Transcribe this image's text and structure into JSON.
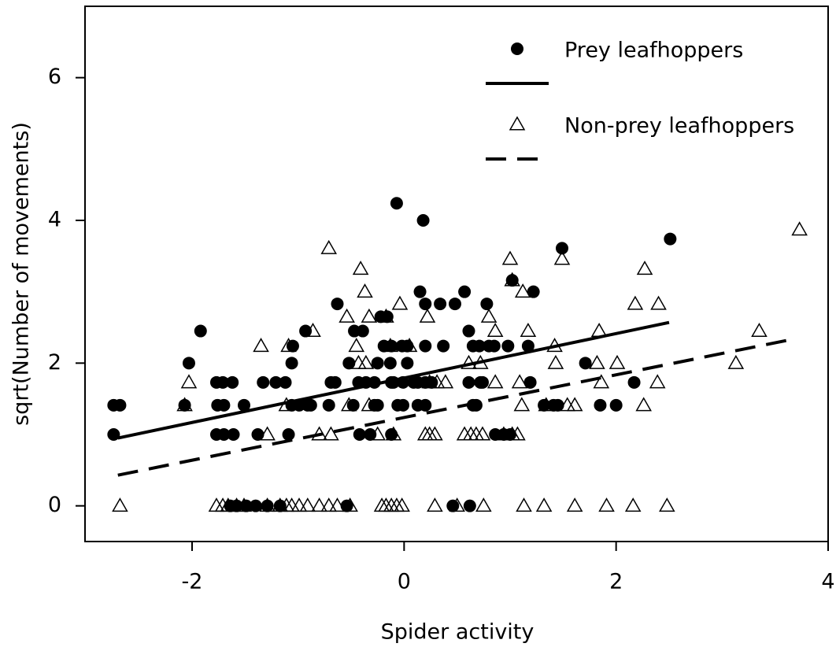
{
  "chart_data": {
    "type": "scatter",
    "x_label": "Spider activity",
    "y_label": "sqrt(Number of movements)",
    "xlim": [
      -3.01,
      4
    ],
    "ylim": [
      -0.5,
      7
    ],
    "xticks": [
      -2,
      0,
      2,
      4
    ],
    "yticks": [
      0,
      2,
      4,
      6
    ],
    "legend": "upper right",
    "series": [
      {
        "name": "Prey leafhoppers",
        "marker": "circle",
        "color": "#000000",
        "x": [
          -2.74,
          -2.68,
          -2.74,
          -2.07,
          -2.03,
          -1.92,
          -1.77,
          -1.71,
          -1.76,
          -1.7,
          -1.77,
          -1.7,
          -1.61,
          -1.64,
          -1.58,
          -1.49,
          -1.62,
          -1.51,
          -1.4,
          -1.29,
          -1.17,
          -1.38,
          -1.33,
          -1.21,
          -1.12,
          -1.09,
          -1.06,
          -1.05,
          -1.06,
          -0.99,
          -0.91,
          -0.88,
          -0.93,
          -0.71,
          -0.69,
          -0.65,
          -0.63,
          -0.54,
          -0.52,
          -0.48,
          -0.42,
          -0.47,
          -0.39,
          -0.43,
          -0.36,
          -0.28,
          -0.32,
          -0.28,
          -0.25,
          -0.25,
          -0.22,
          -0.16,
          -0.19,
          -0.12,
          -0.13,
          -0.12,
          -0.1,
          -0.12,
          -0.06,
          -0.01,
          -0.07,
          -0.02,
          0.03,
          -0.01,
          0.03,
          0.09,
          0.13,
          0.13,
          0.2,
          0.15,
          0.18,
          0.2,
          0.26,
          0.2,
          0.2,
          0.34,
          0.37,
          0.46,
          0.48,
          0.57,
          0.61,
          0.61,
          0.65,
          0.62,
          0.65,
          0.68,
          0.71,
          0.72,
          0.74,
          0.78,
          0.8,
          0.85,
          0.86,
          0.94,
          1.0,
          0.98,
          1.02,
          1.17,
          1.19,
          1.22,
          1.32,
          1.41,
          1.45,
          1.49,
          1.71,
          1.85,
          2.0,
          2.17,
          2.51
        ],
        "values": [
          1.41,
          1.41,
          1,
          1.41,
          2,
          2.45,
          1.73,
          1.73,
          1.41,
          1.41,
          1,
          1,
          1,
          0,
          0,
          0,
          1.73,
          1.41,
          0,
          0,
          0,
          1,
          1.73,
          1.73,
          1.73,
          1,
          2,
          2.24,
          1.41,
          1.41,
          1.41,
          1.41,
          2.45,
          1.41,
          1.73,
          1.73,
          2.83,
          0,
          2,
          1.41,
          1,
          2.45,
          2.45,
          1.73,
          1.73,
          1.73,
          1,
          1.41,
          1.41,
          2,
          2.65,
          2.65,
          2.24,
          2.24,
          2,
          1.73,
          1.73,
          1,
          1.41,
          1.41,
          4.24,
          2.24,
          2.24,
          1.73,
          2,
          1.73,
          1.73,
          1.41,
          1.41,
          3,
          4,
          1.73,
          1.73,
          2.24,
          2.83,
          2.83,
          2.24,
          0,
          2.83,
          3,
          2.45,
          1.73,
          2.24,
          0,
          1.41,
          1.41,
          2.24,
          1.73,
          1.73,
          2.83,
          2.24,
          2.24,
          1,
          1,
          1,
          2.24,
          3.16,
          2.24,
          1.73,
          3,
          1.41,
          1.41,
          1.41,
          3.61,
          2,
          1.41,
          1.41,
          1.73,
          3.74
        ],
        "fit": {
          "x": [
            -2.7,
            2.5
          ],
          "values": [
            0.95,
            2.57
          ],
          "style": "solid"
        }
      },
      {
        "name": "Non-prey leafhoppers",
        "marker": "triangle",
        "color": "#000000",
        "x": [
          -2.68,
          -1.77,
          -1.71,
          -1.66,
          -1.58,
          -1.51,
          -1.29,
          -1.17,
          -1.11,
          -1.06,
          -0.99,
          -0.91,
          -0.8,
          -0.71,
          -0.63,
          -0.51,
          -0.21,
          -0.17,
          -0.12,
          -0.07,
          -0.02,
          0.29,
          0.5,
          0.75,
          1.13,
          1.32,
          1.61,
          1.91,
          2.16,
          2.48,
          -2.03,
          -2.07,
          -1.35,
          -1.29,
          -1.09,
          -1.11,
          -0.86,
          -0.8,
          -0.69,
          -0.71,
          -0.54,
          -0.52,
          -0.45,
          -0.41,
          -0.37,
          -0.43,
          -0.36,
          -0.33,
          -0.33,
          -0.17,
          -0.25,
          -0.1,
          -0.13,
          -0.04,
          0.05,
          0.2,
          0.24,
          0.29,
          0.24,
          0.31,
          0.22,
          0.39,
          0.61,
          0.57,
          0.63,
          0.68,
          0.74,
          0.72,
          0.8,
          0.86,
          0.86,
          0.94,
          1.02,
          1.07,
          1.0,
          1.02,
          1.09,
          1.11,
          1.12,
          1.17,
          1.34,
          1.42,
          1.43,
          1.49,
          1.54,
          1.61,
          1.84,
          1.82,
          1.86,
          2.01,
          2.18,
          2.27,
          2.26,
          2.4,
          2.39,
          3.13,
          3.35,
          3.73
        ],
        "values": [
          0,
          0,
          0,
          0,
          0,
          0,
          0,
          0,
          0,
          0,
          0,
          0,
          0,
          0,
          0,
          0,
          0,
          0,
          0,
          0,
          0,
          0,
          0,
          0,
          0,
          0,
          0,
          0,
          0,
          0,
          1.73,
          1.41,
          2.24,
          1,
          2.24,
          1.41,
          2.45,
          1,
          1,
          3.61,
          2.65,
          1.41,
          2.24,
          3.32,
          3,
          2,
          2,
          1.41,
          2.65,
          2.65,
          1,
          1,
          2.24,
          2.83,
          2.24,
          1,
          1,
          1,
          1.73,
          1.73,
          2.65,
          1.73,
          2,
          1,
          1,
          1,
          1,
          2,
          2.65,
          2.45,
          1.73,
          1,
          1,
          1,
          3.46,
          3.16,
          1.73,
          1.41,
          3,
          2.45,
          1.41,
          2.24,
          2,
          3.46,
          1.41,
          1.41,
          2.45,
          2,
          1.73,
          2,
          2.83,
          3.32,
          1.41,
          2.83,
          1.73,
          2,
          2.45,
          3.87
        ],
        "fit": {
          "x": [
            -2.7,
            3.65
          ],
          "values": [
            0.43,
            2.33
          ],
          "style": "dashed"
        }
      }
    ]
  }
}
